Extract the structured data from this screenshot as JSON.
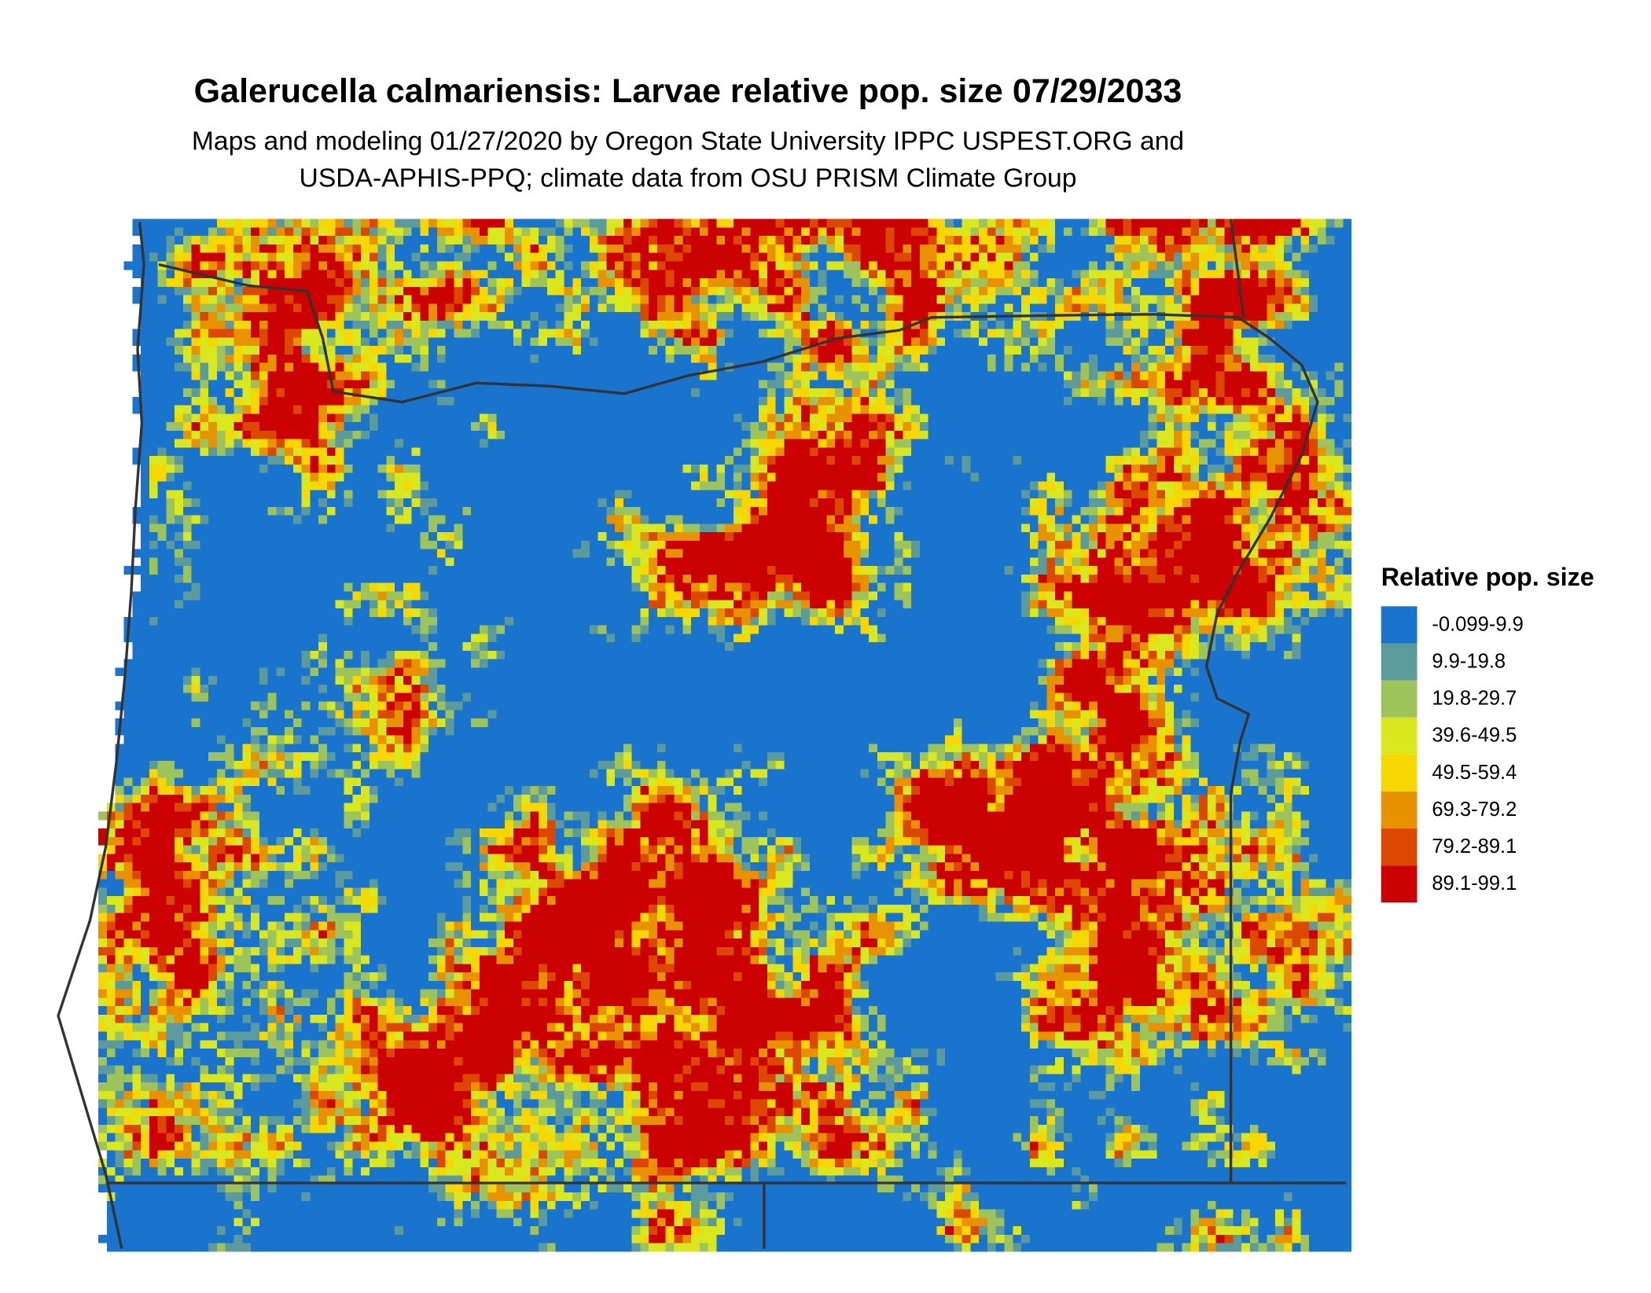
{
  "title": "Galerucella calmariensis: Larvae relative pop. size 07/29/2033",
  "subtitle": [
    "Maps and modeling 01/27/2020 by Oregon State University IPPC USPEST.ORG and",
    "USDA-APHIS-PPQ; climate data from OSU PRISM Climate Group"
  ],
  "legend": {
    "title": "Relative pop. size",
    "items": [
      {
        "label": "-0.099-9.9",
        "color": "#1874cd"
      },
      {
        "label": "9.9-19.8",
        "color": "#5b9b9b"
      },
      {
        "label": "19.8-29.7",
        "color": "#9cc45a"
      },
      {
        "label": "39.6-49.5",
        "color": "#d9e81c"
      },
      {
        "label": "49.5-59.4",
        "color": "#f6d800"
      },
      {
        "label": "69.3-79.2",
        "color": "#e89200"
      },
      {
        "label": "79.2-89.1",
        "color": "#dd4800"
      },
      {
        "label": "89.1-99.1",
        "color": "#cc0000"
      }
    ]
  }
}
